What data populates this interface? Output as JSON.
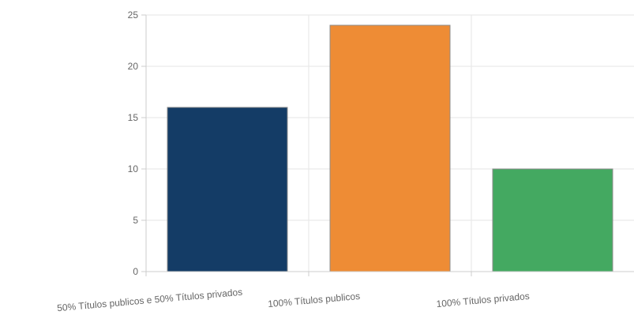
{
  "chart_data": {
    "type": "bar",
    "categories": [
      "50% Títulos publicos e 50% Títulos privados",
      "100% Títulos publicos",
      "100% Títulos privados"
    ],
    "values": [
      16,
      24,
      10
    ],
    "colors": [
      "#143c66",
      "#ee8c35",
      "#44a961"
    ],
    "ylim": [
      0,
      25
    ],
    "yticks": [
      0,
      5,
      10,
      15,
      20,
      25
    ],
    "grid": true,
    "title": "",
    "xlabel": "",
    "ylabel": ""
  }
}
